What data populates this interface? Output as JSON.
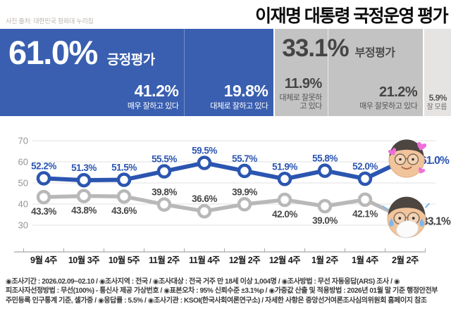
{
  "source_note": "사진 출처: 대한민국 청와대 누리집",
  "title": "이재명 대통령 국정운영 평가",
  "summary": {
    "positive": {
      "value": "61.0%",
      "label": "긍정평가",
      "pct": 61.0,
      "breakdown": [
        {
          "value": "41.2%",
          "label": "매우 잘하고 있다",
          "pct": 41.2
        },
        {
          "value": "19.8%",
          "label": "대체로 잘하고 있다",
          "pct": 19.8
        }
      ]
    },
    "negative": {
      "value": "33.1%",
      "label": "부정평가",
      "pct": 33.1,
      "breakdown": [
        {
          "value": "11.9%",
          "label": "대체로 잘못하고 있다",
          "pct": 11.9
        },
        {
          "value": "21.2%",
          "label": "매우 잘못하고 있다",
          "pct": 21.2
        }
      ]
    },
    "unknown": {
      "value": "5.9%",
      "label": "잘 모름",
      "pct": 5.9
    }
  },
  "colors": {
    "positive_blue": "#3a5fb0",
    "line_blue": "#2b55b0",
    "line_gray": "#b8b8b8",
    "label_gray": "#474747",
    "negative_bar_gray": "#c3c3c3",
    "unknown_bar_gray": "#e6e4e3",
    "heart_pink": "#ee6fd9",
    "tear_blue": "#7cb7ef"
  },
  "chart_data": {
    "type": "line",
    "categories": [
      "9월 4주",
      "10월 3주",
      "10월 5주",
      "11월 2주",
      "11월 4주",
      "12월 2주",
      "12월 4주",
      "1월 2주",
      "1월 4주",
      "2월 2주"
    ],
    "series": [
      {
        "name": "긍정평가",
        "color": "#2b55b0",
        "values": [
          52.2,
          51.3,
          51.5,
          55.5,
          59.5,
          55.7,
          51.9,
          55.8,
          52.0,
          61.0
        ]
      },
      {
        "name": "부정평가",
        "color": "#b8b8b8",
        "values": [
          43.3,
          43.8,
          43.6,
          39.8,
          36.6,
          39.9,
          42.0,
          39.0,
          42.1,
          33.1
        ]
      }
    ],
    "ylim": [
      25,
      75
    ],
    "yticks": [
      70,
      60,
      50,
      40,
      30
    ],
    "grid": true,
    "legend_position": "none",
    "label_sides_positive": [
      "above",
      "above",
      "above",
      "above",
      "above",
      "above",
      "above",
      "above",
      "above",
      "right"
    ],
    "label_sides_negative": [
      "below",
      "below",
      "below",
      "above",
      "above",
      "above",
      "below",
      "below",
      "below",
      "right"
    ],
    "end_markers": {
      "positive": "lee-jae-myung-face-with-hearts",
      "negative": "lee-jae-myung-face-crying"
    },
    "end_labels": {
      "positive": "61.0%",
      "negative": "33.1%"
    }
  },
  "footer": "◉조사기간 : 2026.02.09~02.10 / ◉조사지역 : 전국 / ◉조사대상 : 전국 거주 만 18세 이상 1,004명 / ◉조사방법 : 무선 자동응답(ARS) 조사 / ◉피조사자선정방법 : 무선(100%) - 통신사 제공 가상번호 / ◉표본오차 : 95% 신뢰수준 ±3.1%p / ◉가중값 산출 및 적용방법 : 2026년 01월 말 기준 행정안전부 주민등록 인구통계 기준, 셀가중 / ◉응답률 : 5.5% / ◉조사기관 : KSOI(한국사회여론연구소) / 자세한 사항은 중앙선거여론조사심의위원회 홈페이지 참조"
}
